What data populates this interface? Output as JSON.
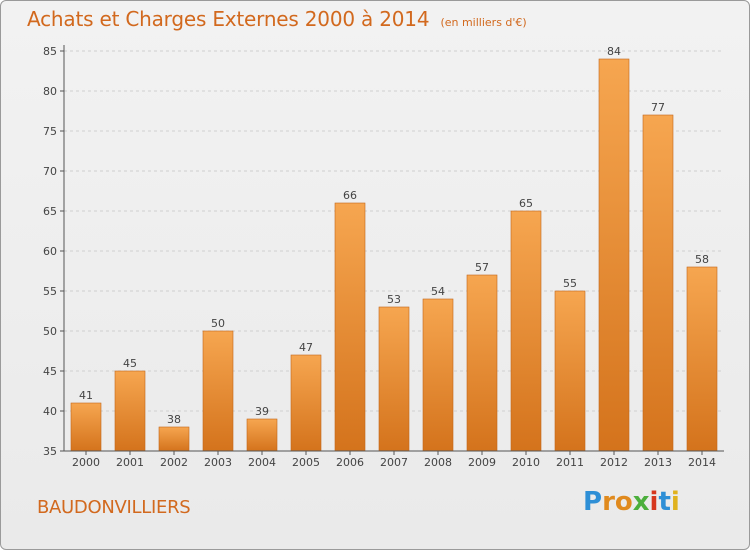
{
  "header": {
    "title": "Achats et Charges Externes 2000 à 2014",
    "subtitle": "(en milliers d'€)"
  },
  "footer": {
    "commune": "BAUDONVILLIERS",
    "logo_text": "Proxiti"
  },
  "colors": {
    "bar_top": "#f6a650",
    "bar_bottom": "#d4731c",
    "title": "#d2691e",
    "grid": "#cfcfcf"
  },
  "chart_data": {
    "type": "bar",
    "title": "Achats et Charges Externes 2000 à 2014",
    "subtitle": "(en milliers d'€)",
    "categories": [
      "2000",
      "2001",
      "2002",
      "2003",
      "2004",
      "2005",
      "2006",
      "2007",
      "2008",
      "2009",
      "2010",
      "2011",
      "2012",
      "2013",
      "2014"
    ],
    "values": [
      41,
      45,
      38,
      50,
      39,
      47,
      66,
      53,
      54,
      57,
      65,
      55,
      84,
      77,
      58
    ],
    "ylim": [
      35,
      85
    ],
    "yticks": [
      35,
      40,
      45,
      50,
      55,
      60,
      65,
      70,
      75,
      80,
      85
    ],
    "grid": true,
    "data_labels": true
  }
}
